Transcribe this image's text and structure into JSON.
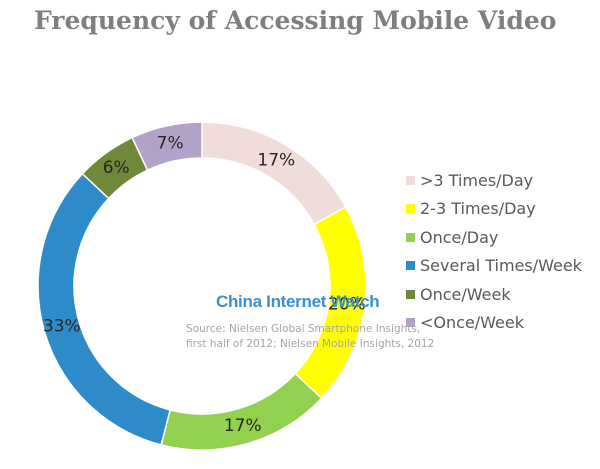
{
  "title": "Frequency of Accessing Mobile Video",
  "chart_data": {
    "type": "pie",
    "style": "donut",
    "legend_position": "right",
    "categories": [
      ">3 Times/Day",
      "2-3 Times/Day",
      "Once/Day",
      "Several Times/Week",
      "Once/Week",
      "<Once/Week"
    ],
    "values": [
      17,
      20,
      17,
      33,
      6,
      7
    ],
    "labels": [
      "17%",
      "20%",
      "17%",
      "33%",
      "6%",
      "7%"
    ],
    "colors": [
      "#f0dcdb",
      "#ffff00",
      "#92d050",
      "#2e8bca",
      "#70883a",
      "#b3a2c7"
    ]
  },
  "watermark": "China Internet Watch",
  "source": {
    "line1": "Source: Nielsen Global Smartphone Insights,",
    "line2": "first half of 2012;  Nielsen Mobile Insights, 2012"
  }
}
